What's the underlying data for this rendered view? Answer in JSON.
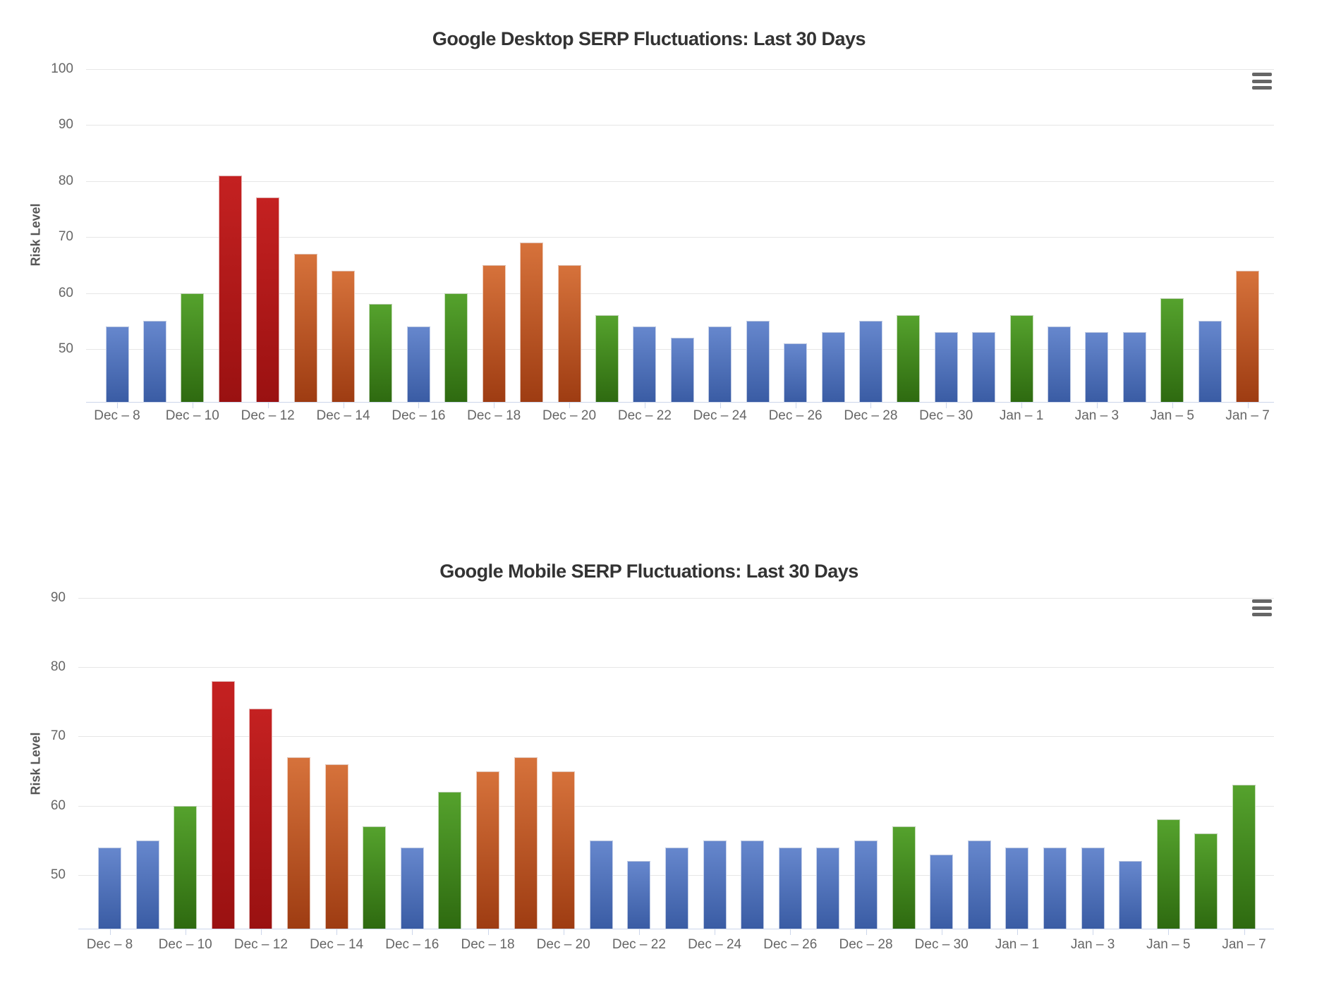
{
  "palette": {
    "b": {
      "name": "normal-risk-blue",
      "top": "#6687cd",
      "bottom": "#3a5ca4"
    },
    "g": {
      "name": "elevated-risk-green",
      "top": "#55a22d",
      "bottom": "#2e6a10"
    },
    "o": {
      "name": "high-risk-orange",
      "top": "#d6723b",
      "bottom": "#9e3c12"
    },
    "r": {
      "name": "very-high-risk-red",
      "top": "#c42121",
      "bottom": "#9a1111"
    }
  },
  "charts": [
    {
      "title": "Google Desktop SERP Fluctuations: Last 30 Days",
      "y_axis_label": "Risk Level",
      "menu_icon": "hamburger-menu-icon",
      "chart_data": {
        "type": "bar",
        "categories": [
          "Dec 8",
          "Dec 9",
          "Dec 10",
          "Dec 11",
          "Dec 12",
          "Dec 13",
          "Dec 14",
          "Dec 15",
          "Dec 16",
          "Dec 17",
          "Dec 18",
          "Dec 19",
          "Dec 20",
          "Dec 21",
          "Dec 22",
          "Dec 23",
          "Dec 24",
          "Dec 25",
          "Dec 26",
          "Dec 27",
          "Dec 28",
          "Dec 29",
          "Dec 30",
          "Dec 31",
          "Jan 1",
          "Jan 2",
          "Jan 3",
          "Jan 4",
          "Jan 5",
          "Jan 6",
          "Jan 7"
        ],
        "values": [
          54,
          55,
          60,
          81,
          77,
          67,
          64,
          58,
          54,
          60,
          65,
          69,
          65,
          56,
          54,
          52,
          54,
          55,
          51,
          53,
          55,
          56,
          53,
          53,
          56,
          54,
          53,
          53,
          59,
          55,
          64
        ],
        "risk": [
          "b",
          "b",
          "g",
          "r",
          "r",
          "o",
          "o",
          "g",
          "b",
          "g",
          "o",
          "o",
          "o",
          "g",
          "b",
          "b",
          "b",
          "b",
          "b",
          "b",
          "b",
          "g",
          "b",
          "b",
          "g",
          "b",
          "b",
          "b",
          "g",
          "b",
          "o"
        ],
        "x_tick_labels": [
          "Dec – 8",
          "Dec – 10",
          "Dec – 12",
          "Dec – 14",
          "Dec – 16",
          "Dec – 18",
          "Dec – 20",
          "Dec – 22",
          "Dec – 24",
          "Dec – 26",
          "Dec – 28",
          "Dec – 30",
          "Jan – 1",
          "Jan – 3",
          "Jan – 5",
          "Jan – 7"
        ],
        "yticks": [
          50,
          60,
          70,
          80,
          90,
          100
        ],
        "ylabel": "Risk Level",
        "ylim": [
          40.6,
          100
        ],
        "grid": "horizontal-only",
        "legend": "none"
      }
    },
    {
      "title": "Google Mobile SERP Fluctuations: Last 30 Days",
      "y_axis_label": "Risk Level",
      "menu_icon": "hamburger-menu-icon",
      "chart_data": {
        "type": "bar",
        "categories": [
          "Dec 8",
          "Dec 9",
          "Dec 10",
          "Dec 11",
          "Dec 12",
          "Dec 13",
          "Dec 14",
          "Dec 15",
          "Dec 16",
          "Dec 17",
          "Dec 18",
          "Dec 19",
          "Dec 20",
          "Dec 21",
          "Dec 22",
          "Dec 23",
          "Dec 24",
          "Dec 25",
          "Dec 26",
          "Dec 27",
          "Dec 28",
          "Dec 29",
          "Dec 30",
          "Dec 31",
          "Jan 1",
          "Jan 2",
          "Jan 3",
          "Jan 4",
          "Jan 5",
          "Jan 6",
          "Jan 7"
        ],
        "values": [
          54,
          55,
          60,
          78,
          74,
          67,
          66,
          57,
          54,
          62,
          65,
          67,
          65,
          55,
          52,
          54,
          55,
          55,
          54,
          54,
          55,
          57,
          53,
          55,
          54,
          54,
          54,
          52,
          58,
          56,
          63
        ],
        "risk": [
          "b",
          "b",
          "g",
          "r",
          "r",
          "o",
          "o",
          "g",
          "b",
          "g",
          "o",
          "o",
          "o",
          "b",
          "b",
          "b",
          "b",
          "b",
          "b",
          "b",
          "b",
          "g",
          "b",
          "b",
          "b",
          "b",
          "b",
          "b",
          "g",
          "g",
          "g"
        ],
        "x_tick_labels": [
          "Dec – 8",
          "Dec – 10",
          "Dec – 12",
          "Dec – 14",
          "Dec – 16",
          "Dec – 18",
          "Dec – 20",
          "Dec – 22",
          "Dec – 24",
          "Dec – 26",
          "Dec – 28",
          "Dec – 30",
          "Jan – 1",
          "Jan – 3",
          "Jan – 5",
          "Jan – 7"
        ],
        "yticks": [
          50,
          60,
          70,
          80,
          90
        ],
        "ylabel": "Risk Level",
        "ylim": [
          42.3,
          90
        ],
        "grid": "horizontal-only",
        "legend": "none"
      }
    }
  ]
}
